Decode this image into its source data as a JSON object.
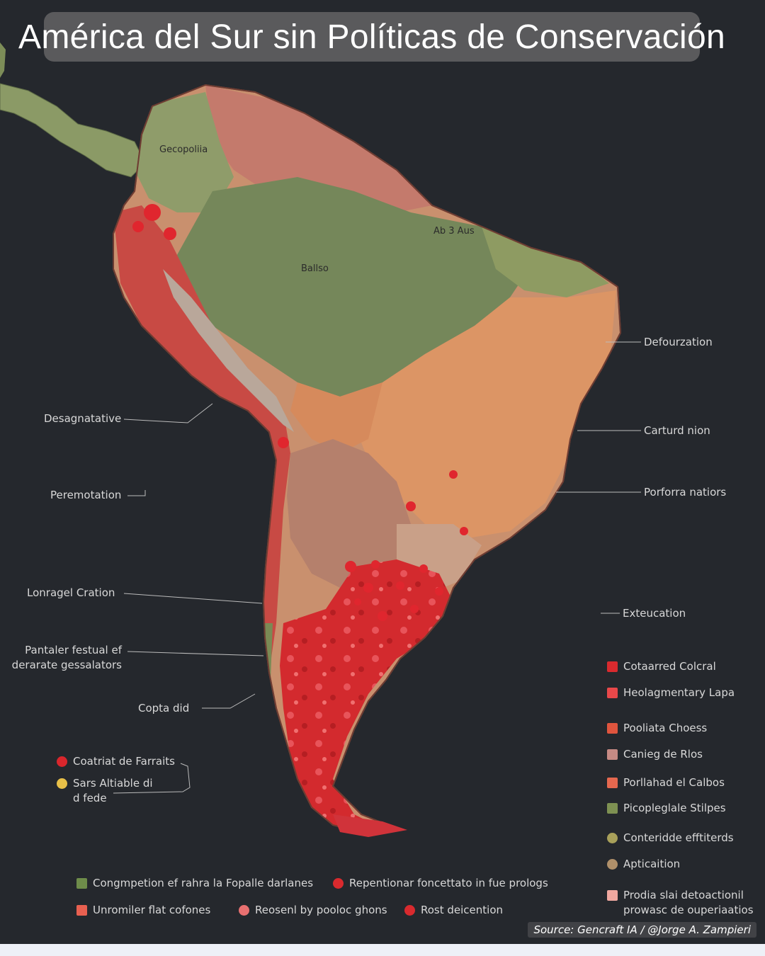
{
  "title": "América del Sur sin Políticas de Conservación",
  "map_labels": [
    "Gecopoliia",
    "Ballso",
    "Ab 3 Aus"
  ],
  "callouts_right": [
    {
      "id": "deforestacion",
      "text": "Defourzation"
    },
    {
      "id": "carturd",
      "text": "Carturd nion"
    },
    {
      "id": "porforra",
      "text": "Porforra natiors"
    },
    {
      "id": "exteucation",
      "text": "Exteucation"
    }
  ],
  "callouts_left": [
    {
      "id": "desagnatative",
      "text": "Desagnatative"
    },
    {
      "id": "peremotation",
      "text": "Peremotation"
    },
    {
      "id": "lonragel",
      "text": "Lonragel Cration"
    },
    {
      "id": "pantaler",
      "text": "Pantaler festual ef\nderarate gessalators"
    },
    {
      "id": "copta",
      "text": "Copta did"
    }
  ],
  "legend_left": [
    {
      "text": "Coatriat de Farraits",
      "color": "#d9262c",
      "shape": "dot"
    },
    {
      "text": "Sars Altiable di\nd fede",
      "color": "#e8c048",
      "shape": "dot"
    }
  ],
  "legend_right": [
    {
      "text": "Cotaarred Colcral",
      "color": "#d92a2e",
      "shape": "square"
    },
    {
      "text": "Heolagmentary Lapa",
      "color": "#e8484a",
      "shape": "square"
    },
    {
      "text": "Pooliata Choess",
      "color": "#e0553e",
      "shape": "square"
    },
    {
      "text": "Canieg de Rlos",
      "color": "#c68a84",
      "shape": "square"
    },
    {
      "text": "Porllahad el Calbos",
      "color": "#e5684f",
      "shape": "square"
    },
    {
      "text": "Picopleglale Stilpes",
      "color": "#7e9152",
      "shape": "square"
    },
    {
      "text": "Conteridde efftiterds",
      "color": "#a8a05a",
      "shape": "dot"
    },
    {
      "text": "Apticaition",
      "color": "#b0906a",
      "shape": "dot"
    },
    {
      "text": "Prodia slai detoactionil\nprowasc de ouperiaatios",
      "color": "#f0a8a0",
      "shape": "square"
    }
  ],
  "legend_bottom": [
    {
      "text": "Congmpetion ef rahra la Fopalle darlanes",
      "color": "#6e8c4a",
      "shape": "square"
    },
    {
      "text": "Repentionar foncettato in fue prologs",
      "color": "#d92a2e",
      "shape": "dot"
    },
    {
      "text": "Unromiler flat cofones",
      "color": "#e86050",
      "shape": "square"
    },
    {
      "text": "Reosenl by pooloc ghons",
      "color": "#e87070",
      "shape": "dot"
    },
    {
      "text": "Rost deicention",
      "color": "#d92a2e",
      "shape": "dot"
    }
  ],
  "source": "Source: Gencraft IA  /  @Jorge A. Zampieri",
  "colors": {
    "background": "#25282d",
    "forest_green": "#78895a",
    "deforested_orange": "#d98e5e",
    "andes_red": "#c8423f",
    "hotspot_red": "#d92a2e",
    "rosy_brown": "#b98272"
  }
}
